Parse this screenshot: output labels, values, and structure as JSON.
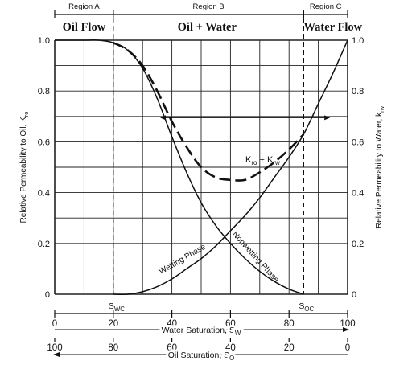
{
  "chart_data": {
    "type": "line",
    "regions": [
      {
        "label": "Region A",
        "x_from": 0,
        "x_to": 20
      },
      {
        "label": "Region B",
        "x_from": 20,
        "x_to": 85
      },
      {
        "label": "Region C",
        "x_from": 85,
        "x_to": 100
      }
    ],
    "flow_labels": [
      {
        "text": "Oil Flow",
        "x": 10
      },
      {
        "text": "Oil + Water",
        "x": 52
      },
      {
        "text": "Water Flow",
        "x": 95
      }
    ],
    "xlim": [
      0,
      100
    ],
    "ylim": [
      0,
      1.0
    ],
    "y_ticks": [
      "0",
      "0.2",
      "0.4",
      "0.6",
      "0.8",
      "1.0"
    ],
    "ylabel_left": "Relative Permeability to Oil, K",
    "ylabel_left_sub": "ro",
    "ylabel_right": "Relative Permeability to Water, k",
    "ylabel_right_sub": "rw",
    "x_axis_water": {
      "label": "Water Saturation, S",
      "label_sub": "W",
      "ticks": [
        "0",
        "20",
        "40",
        "60",
        "80",
        "100"
      ]
    },
    "x_axis_oil": {
      "label": "Oil Saturation, S",
      "label_sub": "O",
      "ticks": [
        "100",
        "80",
        "60",
        "40",
        "20",
        "0"
      ]
    },
    "markers": [
      {
        "text": "S",
        "sub": "WC",
        "x": 20
      },
      {
        "text": "S",
        "sub": "OC",
        "x": 85
      }
    ],
    "series": [
      {
        "name": "Nonwetting Phase",
        "style": "solid",
        "x": [
          0,
          10,
          15,
          20,
          25,
          30,
          35,
          40,
          45,
          50,
          55,
          60,
          65,
          70,
          75,
          80,
          85
        ],
        "y": [
          1.0,
          1.0,
          1.0,
          0.99,
          0.96,
          0.89,
          0.77,
          0.62,
          0.48,
          0.36,
          0.27,
          0.2,
          0.14,
          0.09,
          0.05,
          0.02,
          0.0
        ]
      },
      {
        "name": "Wetting Phase",
        "style": "solid",
        "x": [
          20,
          25,
          30,
          35,
          40,
          45,
          50,
          55,
          60,
          65,
          70,
          75,
          80,
          85,
          90,
          95,
          100
        ],
        "y": [
          0.0,
          0.0,
          0.01,
          0.03,
          0.06,
          0.1,
          0.14,
          0.19,
          0.25,
          0.31,
          0.38,
          0.46,
          0.54,
          0.63,
          0.75,
          0.87,
          1.0
        ]
      },
      {
        "name": "Kro + Krw",
        "style": "dashed",
        "x": [
          20,
          25,
          30,
          35,
          40,
          45,
          50,
          55,
          60,
          65,
          70,
          75,
          80,
          85
        ],
        "y": [
          0.99,
          0.96,
          0.9,
          0.8,
          0.68,
          0.58,
          0.5,
          0.46,
          0.45,
          0.45,
          0.48,
          0.52,
          0.57,
          0.63
        ]
      }
    ],
    "curve_labels": [
      {
        "text": "K",
        "sub1": "ro",
        "mid": " + K",
        "sub2": "rw",
        "x": 71,
        "y": 0.5
      },
      {
        "text": "Wetting Phase",
        "x": 44,
        "y": 0.13,
        "rotate": -30
      },
      {
        "text": "Nonwetting Phase",
        "x": 68,
        "y": 0.14,
        "rotate": 48
      }
    ],
    "grid": true
  }
}
